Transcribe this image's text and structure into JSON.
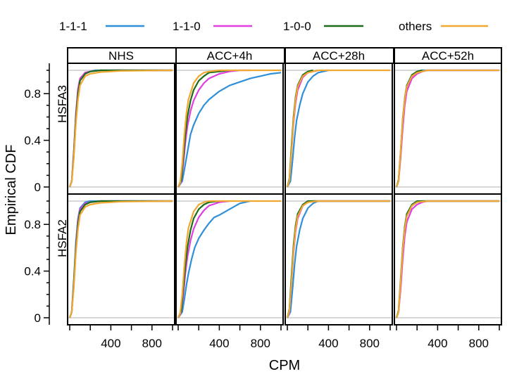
{
  "chart_data": {
    "type": "line",
    "xlabel": "CPM",
    "ylabel": "Empirical CDF",
    "xlim": [
      0,
      1000
    ],
    "ylim": [
      0,
      1
    ],
    "x_ticks": [
      400,
      800
    ],
    "x_tick_labels": [
      "400",
      "800"
    ],
    "y_tick_labels": [
      "0",
      "0.4",
      "0.8"
    ],
    "y_ticks": [
      0,
      0.4,
      0.8
    ],
    "columns": [
      "NHS",
      "ACC+4h",
      "ACC+28h",
      "ACC+52h"
    ],
    "rows": [
      "HSFA3",
      "HSFA2"
    ],
    "legend_position": "top",
    "series_styles": [
      {
        "name": "1-1-1",
        "color": "#2f8fd8"
      },
      {
        "name": "1-1-0",
        "color": "#e040e0"
      },
      {
        "name": "1-0-0",
        "color": "#1a6b1a"
      },
      {
        "name": "others",
        "color": "#f0a830"
      }
    ],
    "grid": false,
    "reference_lines": [
      0,
      1
    ],
    "panels": [
      {
        "row": "HSFA3",
        "column": "NHS",
        "series": [
          {
            "name": "1-1-1",
            "x": [
              0,
              20,
              40,
              60,
              80,
              100,
              150,
              200,
              250,
              400,
              1000
            ],
            "y": [
              0,
              0.05,
              0.3,
              0.62,
              0.82,
              0.92,
              0.98,
              0.99,
              1,
              1,
              1
            ]
          },
          {
            "name": "1-1-0",
            "x": [
              0,
              20,
              40,
              60,
              80,
              100,
              150,
              200,
              300,
              1000
            ],
            "y": [
              0,
              0.05,
              0.3,
              0.63,
              0.84,
              0.93,
              0.98,
              0.99,
              1,
              1
            ]
          },
          {
            "name": "1-0-0",
            "x": [
              0,
              20,
              40,
              60,
              80,
              100,
              150,
              200,
              300,
              1000
            ],
            "y": [
              0,
              0.05,
              0.28,
              0.6,
              0.8,
              0.91,
              0.97,
              0.99,
              1,
              1
            ]
          },
          {
            "name": "others",
            "x": [
              0,
              20,
              40,
              60,
              80,
              100,
              150,
              200,
              300,
              500,
              1000
            ],
            "y": [
              0,
              0.05,
              0.25,
              0.55,
              0.75,
              0.87,
              0.95,
              0.97,
              0.985,
              0.995,
              1
            ]
          }
        ]
      },
      {
        "row": "HSFA3",
        "column": "ACC+4h",
        "series": [
          {
            "name": "1-1-1",
            "x": [
              0,
              40,
              60,
              80,
              100,
              120,
              150,
              200,
              250,
              300,
              400,
              500,
              600,
              700,
              800,
              900,
              1000
            ],
            "y": [
              0,
              0.05,
              0.15,
              0.25,
              0.35,
              0.45,
              0.53,
              0.63,
              0.7,
              0.75,
              0.82,
              0.87,
              0.9,
              0.93,
              0.95,
              0.97,
              0.98
            ]
          },
          {
            "name": "1-1-0",
            "x": [
              0,
              30,
              50,
              70,
              90,
              120,
              150,
              200,
              250,
              300,
              400,
              500,
              600,
              700
            ],
            "y": [
              0,
              0.05,
              0.2,
              0.38,
              0.52,
              0.65,
              0.74,
              0.83,
              0.89,
              0.93,
              0.97,
              0.99,
              1,
              1
            ]
          },
          {
            "name": "1-0-0",
            "x": [
              0,
              30,
              50,
              70,
              90,
              120,
              150,
              200,
              250,
              300,
              400,
              500
            ],
            "y": [
              0,
              0.06,
              0.25,
              0.45,
              0.6,
              0.74,
              0.83,
              0.91,
              0.95,
              0.98,
              0.99,
              1
            ]
          },
          {
            "name": "others",
            "x": [
              0,
              20,
              40,
              60,
              80,
              100,
              150,
              200,
              250,
              300,
              400,
              1000
            ],
            "y": [
              0,
              0.04,
              0.2,
              0.45,
              0.63,
              0.75,
              0.89,
              0.95,
              0.98,
              0.99,
              1,
              1
            ]
          }
        ]
      },
      {
        "row": "HSFA3",
        "column": "ACC+28h",
        "series": [
          {
            "name": "1-1-1",
            "x": [
              0,
              30,
              50,
              70,
              90,
              120,
              150,
              200,
              250,
              300,
              400
            ],
            "y": [
              0,
              0.05,
              0.22,
              0.42,
              0.57,
              0.7,
              0.8,
              0.9,
              0.95,
              0.98,
              1
            ]
          },
          {
            "name": "1-1-0",
            "x": [
              0,
              20,
              40,
              60,
              80,
              100,
              150,
              200,
              250,
              300
            ],
            "y": [
              0,
              0.06,
              0.3,
              0.55,
              0.72,
              0.83,
              0.94,
              0.98,
              0.99,
              1
            ]
          },
          {
            "name": "1-0-0",
            "x": [
              0,
              20,
              40,
              60,
              80,
              100,
              150,
              200,
              250
            ],
            "y": [
              0,
              0.07,
              0.34,
              0.6,
              0.77,
              0.87,
              0.96,
              0.99,
              1
            ]
          },
          {
            "name": "others",
            "x": [
              0,
              20,
              40,
              60,
              80,
              100,
              150,
              200,
              300,
              1000
            ],
            "y": [
              0,
              0.06,
              0.3,
              0.57,
              0.75,
              0.86,
              0.95,
              0.98,
              1,
              1
            ]
          }
        ]
      },
      {
        "row": "HSFA3",
        "column": "ACC+52h",
        "series": [
          {
            "name": "1-1-1",
            "x": [
              0,
              20,
              40,
              60,
              80,
              100,
              150,
              200,
              250,
              1000
            ],
            "y": [
              0,
              0.05,
              0.28,
              0.55,
              0.74,
              0.86,
              0.95,
              0.99,
              1,
              1
            ]
          },
          {
            "name": "1-1-0",
            "x": [
              0,
              20,
              40,
              60,
              80,
              100,
              150,
              200,
              250,
              300,
              1000
            ],
            "y": [
              0,
              0.05,
              0.25,
              0.5,
              0.7,
              0.82,
              0.93,
              0.97,
              0.99,
              1,
              1
            ]
          },
          {
            "name": "1-0-0",
            "x": [
              0,
              20,
              40,
              60,
              80,
              100,
              150,
              200,
              250
            ],
            "y": [
              0,
              0.06,
              0.3,
              0.58,
              0.76,
              0.87,
              0.96,
              0.99,
              1
            ]
          },
          {
            "name": "others",
            "x": [
              0,
              20,
              40,
              60,
              80,
              100,
              150,
              200,
              300,
              1000
            ],
            "y": [
              0,
              0.05,
              0.3,
              0.57,
              0.75,
              0.86,
              0.95,
              0.98,
              1,
              1
            ]
          }
        ]
      },
      {
        "row": "HSFA2",
        "column": "NHS",
        "series": [
          {
            "name": "1-1-1",
            "x": [
              0,
              20,
              40,
              60,
              80,
              100,
              150,
              200,
              1000
            ],
            "y": [
              0,
              0.05,
              0.32,
              0.65,
              0.85,
              0.94,
              0.99,
              1,
              1
            ]
          },
          {
            "name": "1-1-0",
            "x": [
              0,
              20,
              40,
              60,
              80,
              100,
              150,
              200,
              300,
              1000
            ],
            "y": [
              0,
              0.05,
              0.3,
              0.62,
              0.83,
              0.93,
              0.98,
              0.99,
              1,
              1
            ]
          },
          {
            "name": "1-0-0",
            "x": [
              0,
              20,
              40,
              60,
              80,
              100,
              150,
              200,
              300,
              1000
            ],
            "y": [
              0,
              0.05,
              0.3,
              0.6,
              0.8,
              0.91,
              0.97,
              0.99,
              1,
              1
            ]
          },
          {
            "name": "others",
            "x": [
              0,
              20,
              40,
              60,
              80,
              100,
              150,
              200,
              300,
              500,
              1000
            ],
            "y": [
              0,
              0.05,
              0.26,
              0.56,
              0.76,
              0.88,
              0.95,
              0.97,
              0.985,
              0.995,
              1
            ]
          }
        ]
      },
      {
        "row": "HSFA2",
        "column": "ACC+4h",
        "series": [
          {
            "name": "1-1-1",
            "x": [
              0,
              40,
              60,
              80,
              100,
              130,
              160,
              200,
              250,
              300,
              350,
              400,
              500,
              600,
              700
            ],
            "y": [
              0,
              0.05,
              0.16,
              0.28,
              0.38,
              0.5,
              0.6,
              0.68,
              0.75,
              0.81,
              0.86,
              0.88,
              0.93,
              0.98,
              1
            ]
          },
          {
            "name": "1-1-0",
            "x": [
              0,
              30,
              50,
              70,
              90,
              120,
              150,
              200,
              250,
              300,
              400,
              500
            ],
            "y": [
              0,
              0.05,
              0.2,
              0.38,
              0.52,
              0.66,
              0.76,
              0.86,
              0.92,
              0.96,
              0.99,
              1
            ]
          },
          {
            "name": "1-0-0",
            "x": [
              0,
              30,
              50,
              70,
              90,
              120,
              150,
              200,
              250,
              300,
              400
            ],
            "y": [
              0,
              0.06,
              0.25,
              0.45,
              0.6,
              0.75,
              0.85,
              0.93,
              0.97,
              0.99,
              1
            ]
          },
          {
            "name": "others",
            "x": [
              0,
              20,
              40,
              60,
              80,
              100,
              150,
              200,
              250,
              300,
              1000
            ],
            "y": [
              0,
              0.04,
              0.2,
              0.45,
              0.64,
              0.77,
              0.91,
              0.97,
              0.99,
              1,
              1
            ]
          }
        ]
      },
      {
        "row": "HSFA2",
        "column": "ACC+28h",
        "series": [
          {
            "name": "1-1-1",
            "x": [
              0,
              30,
              50,
              70,
              90,
              120,
              150,
              200,
              250,
              300,
              1000
            ],
            "y": [
              0,
              0.05,
              0.24,
              0.45,
              0.61,
              0.75,
              0.85,
              0.94,
              0.98,
              1,
              1
            ]
          },
          {
            "name": "1-1-0",
            "x": [
              0,
              20,
              40,
              60,
              80,
              100,
              150,
              200,
              250,
              1000
            ],
            "y": [
              0,
              0.05,
              0.3,
              0.56,
              0.74,
              0.85,
              0.96,
              0.99,
              1,
              1
            ]
          },
          {
            "name": "1-0-0",
            "x": [
              0,
              20,
              40,
              60,
              80,
              100,
              150,
              200,
              1000
            ],
            "y": [
              0,
              0.07,
              0.35,
              0.62,
              0.79,
              0.89,
              0.97,
              1,
              1
            ]
          },
          {
            "name": "others",
            "x": [
              0,
              20,
              40,
              60,
              80,
              100,
              150,
              200,
              300,
              1000
            ],
            "y": [
              0,
              0.06,
              0.3,
              0.58,
              0.76,
              0.87,
              0.96,
              0.99,
              1,
              1
            ]
          }
        ]
      },
      {
        "row": "HSFA2",
        "column": "ACC+52h",
        "series": [
          {
            "name": "1-1-1",
            "x": [
              0,
              20,
              40,
              60,
              80,
              100,
              150,
              200,
              250,
              1000
            ],
            "y": [
              0,
              0.05,
              0.28,
              0.56,
              0.75,
              0.87,
              0.96,
              0.99,
              1,
              1
            ]
          },
          {
            "name": "1-1-0",
            "x": [
              0,
              20,
              40,
              60,
              80,
              100,
              150,
              200,
              250,
              300,
              1000
            ],
            "y": [
              0,
              0.05,
              0.24,
              0.5,
              0.7,
              0.82,
              0.93,
              0.97,
              0.99,
              1,
              1
            ]
          },
          {
            "name": "1-0-0",
            "x": [
              0,
              20,
              40,
              60,
              80,
              100,
              150,
              200,
              1000
            ],
            "y": [
              0,
              0.06,
              0.32,
              0.6,
              0.78,
              0.89,
              0.97,
              1,
              1
            ]
          },
          {
            "name": "others",
            "x": [
              0,
              20,
              40,
              60,
              80,
              100,
              150,
              200,
              300,
              1000
            ],
            "y": [
              0,
              0.05,
              0.3,
              0.58,
              0.76,
              0.87,
              0.96,
              0.99,
              1,
              1
            ]
          }
        ]
      }
    ]
  }
}
